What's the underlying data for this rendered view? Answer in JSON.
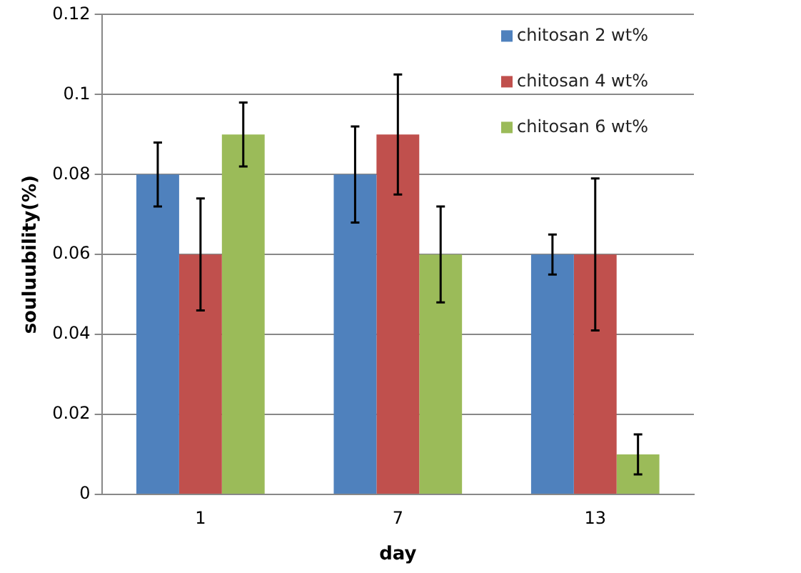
{
  "chart_data": {
    "type": "bar",
    "xlabel": "day",
    "ylabel": "souluubility(%)",
    "categories": [
      "1",
      "7",
      "13"
    ],
    "series": [
      {
        "name": "chitosan 2 wt%",
        "color": "#4f81bd",
        "values": [
          0.08,
          0.08,
          0.06
        ],
        "errors": [
          0.008,
          0.012,
          0.005
        ]
      },
      {
        "name": "chitosan 4 wt%",
        "color": "#c0504d",
        "values": [
          0.06,
          0.09,
          0.06
        ],
        "errors": [
          0.014,
          0.015,
          0.019
        ]
      },
      {
        "name": "chitosan 6 wt%",
        "color": "#9bbb59",
        "values": [
          0.09,
          0.06,
          0.01
        ],
        "errors": [
          0.008,
          0.012,
          0.005
        ]
      }
    ],
    "ylim": [
      0,
      0.12
    ],
    "yticks": [
      0,
      0.02,
      0.04,
      0.06,
      0.08,
      0.1,
      0.12
    ],
    "grid": "y",
    "legend": "top right"
  }
}
